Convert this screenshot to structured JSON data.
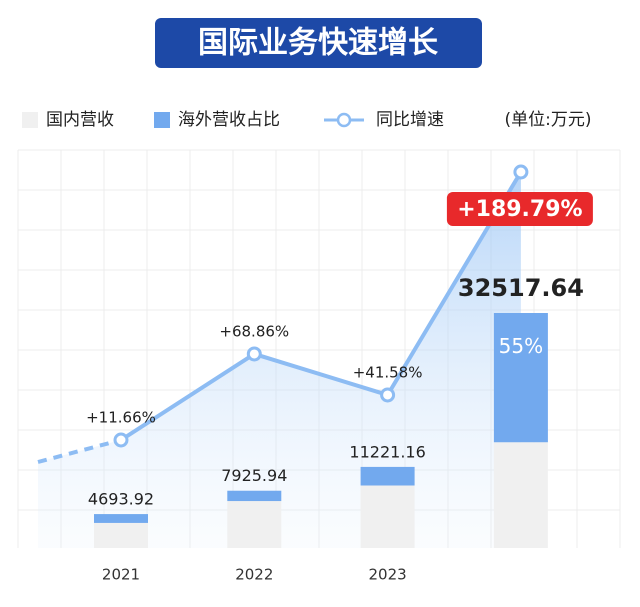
{
  "chart_data": {
    "type": "bar",
    "title": "国际业务快速增长",
    "unit": "(单位:万元)",
    "categories": [
      "2021",
      "2022",
      "2023",
      null
    ],
    "series": [
      {
        "name": "国内营收",
        "color": "#f0f0f0",
        "values": [
          3469,
          6495,
          8649,
          14633
        ]
      },
      {
        "name": "海外营收占比",
        "color": "#72a9ee",
        "values": [
          1225,
          1431,
          2572,
          17885
        ],
        "share": [
          null,
          null,
          null,
          {
            "value": 55,
            "label": "55%"
          }
        ]
      },
      {
        "name": "同比增速",
        "type": "line",
        "color": "#8dbcf3",
        "values": [
          11.66,
          68.86,
          41.58,
          189.79
        ],
        "value_labels": [
          "+11.66%",
          "+68.86%",
          "+41.58%",
          "+189.79%"
        ]
      }
    ],
    "totals": [
      4693.92,
      7925.94,
      11221.16,
      32517.64
    ]
  }
}
